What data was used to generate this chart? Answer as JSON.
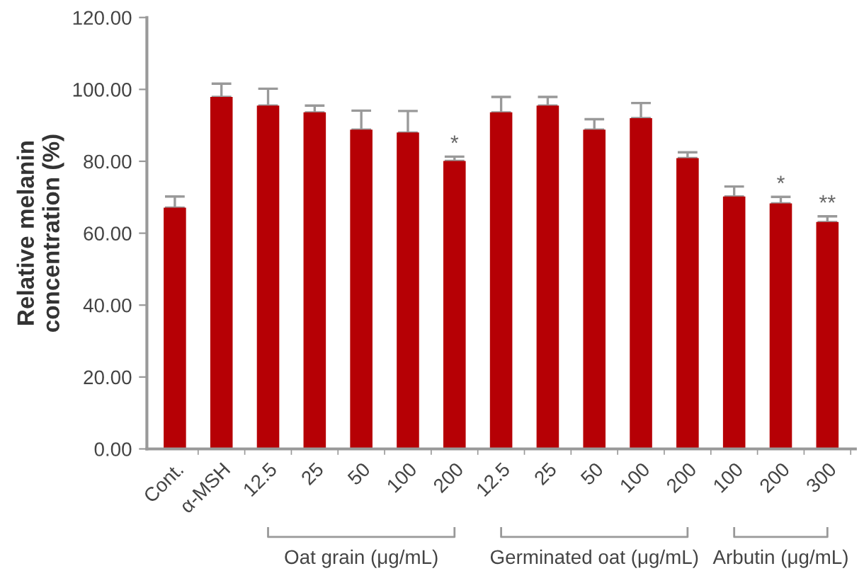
{
  "chart_data": {
    "type": "bar",
    "ylabel": "Relative melanin\nconcentration (%)",
    "categories": [
      "Cont.",
      "α-MSH",
      "12.5",
      "25",
      "50",
      "100",
      "200",
      "12.5",
      "25",
      "50",
      "100",
      "200",
      "100",
      "200",
      "300"
    ],
    "values": [
      67.1,
      97.9,
      95.5,
      93.6,
      88.8,
      88.0,
      80.1,
      93.6,
      95.5,
      88.8,
      92.0,
      80.9,
      70.2,
      68.3,
      63.1
    ],
    "errors": [
      3.1,
      3.7,
      4.7,
      1.9,
      5.3,
      6.0,
      1.2,
      4.3,
      2.4,
      2.9,
      4.2,
      1.6,
      2.8,
      1.8,
      1.6
    ],
    "value_labels": [
      null,
      null,
      null,
      null,
      null,
      null,
      "*",
      null,
      null,
      null,
      null,
      null,
      null,
      "*",
      "**"
    ],
    "color": "#b60005",
    "ylim": [
      0,
      120
    ],
    "yticks": [
      {
        "value": 0,
        "label": "0.00"
      },
      {
        "value": 20,
        "label": "20.00"
      },
      {
        "value": 40,
        "label": "40.00"
      },
      {
        "value": 60,
        "label": "60.00"
      },
      {
        "value": 80,
        "label": "80.00"
      },
      {
        "value": 100,
        "label": "100.00"
      },
      {
        "value": 120,
        "label": "120.00"
      }
    ],
    "annotations": [
      "Oat grain (μg/mL)",
      "Germinated oat (μg/mL)",
      "Arbutin (μg/mL)"
    ],
    "grid": false,
    "legend": false
  }
}
